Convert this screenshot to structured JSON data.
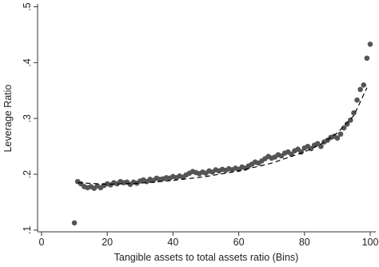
{
  "chart_data": {
    "type": "scatter",
    "x_label": "Tangible assets to total assets ratio (Bins)",
    "y_label": "Leverage Ratio",
    "xlim": [
      -1.2,
      101.7
    ],
    "ylim": [
      0.097,
      0.505
    ],
    "xticks": [
      0,
      20,
      40,
      60,
      80,
      100
    ],
    "yticks": [
      {
        "value": 0.1,
        "label": ".1"
      },
      {
        "value": 0.2,
        "label": ".2"
      },
      {
        "value": 0.3,
        "label": ".3"
      },
      {
        "value": 0.4,
        "label": ".4"
      },
      {
        "value": 0.5,
        "label": ".5"
      }
    ],
    "series": [
      {
        "style": "markers",
        "color": "#555555",
        "x": [
          10,
          11,
          12,
          13,
          14,
          15,
          16,
          17,
          18,
          19,
          20,
          21,
          22,
          23,
          24,
          25,
          26,
          27,
          28,
          29,
          30,
          31,
          32,
          33,
          34,
          35,
          36,
          37,
          38,
          39,
          40,
          41,
          42,
          43,
          44,
          45,
          46,
          47,
          48,
          49,
          50,
          51,
          52,
          53,
          54,
          55,
          56,
          57,
          58,
          59,
          60,
          61,
          62,
          63,
          64,
          65,
          66,
          67,
          68,
          69,
          70,
          71,
          72,
          73,
          74,
          75,
          76,
          77,
          78,
          79,
          80,
          81,
          82,
          83,
          84,
          85,
          86,
          87,
          88,
          89,
          90,
          91,
          92,
          93,
          94,
          95,
          96,
          97,
          98,
          99,
          100
        ],
        "values": [
          0.113,
          0.187,
          0.183,
          0.178,
          0.176,
          0.178,
          0.175,
          0.179,
          0.176,
          0.18,
          0.183,
          0.181,
          0.185,
          0.183,
          0.187,
          0.185,
          0.186,
          0.182,
          0.186,
          0.184,
          0.188,
          0.19,
          0.187,
          0.191,
          0.189,
          0.193,
          0.191,
          0.192,
          0.194,
          0.193,
          0.196,
          0.194,
          0.197,
          0.195,
          0.199,
          0.202,
          0.205,
          0.203,
          0.201,
          0.204,
          0.202,
          0.206,
          0.204,
          0.208,
          0.206,
          0.209,
          0.207,
          0.21,
          0.208,
          0.211,
          0.209,
          0.213,
          0.211,
          0.215,
          0.218,
          0.222,
          0.22,
          0.224,
          0.228,
          0.232,
          0.229,
          0.231,
          0.235,
          0.233,
          0.238,
          0.24,
          0.236,
          0.242,
          0.245,
          0.24,
          0.247,
          0.25,
          0.246,
          0.252,
          0.255,
          0.25,
          0.258,
          0.261,
          0.266,
          0.268,
          0.265,
          0.272,
          0.283,
          0.29,
          0.297,
          0.31,
          0.333,
          0.352,
          0.36,
          0.408,
          0.433
        ]
      },
      {
        "style": "dashed-line",
        "color": "#000000",
        "x": [
          11,
          20,
          30,
          40,
          50,
          60,
          70,
          80,
          85,
          90,
          95,
          99
        ],
        "values": [
          0.185,
          0.182,
          0.184,
          0.189,
          0.196,
          0.206,
          0.22,
          0.24,
          0.254,
          0.274,
          0.305,
          0.355
        ]
      }
    ]
  }
}
